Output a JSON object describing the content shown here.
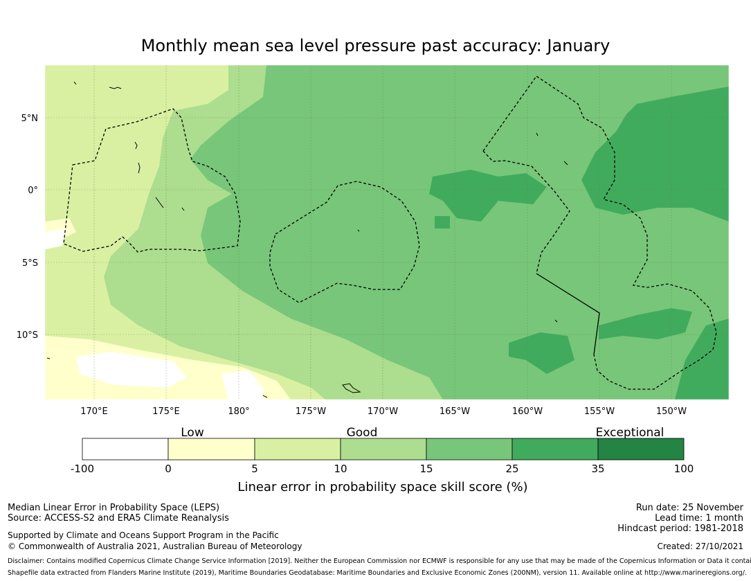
{
  "title": "Monthly mean sea level pressure past accuracy: January",
  "map": {
    "lat_labels": [
      "5°N",
      "0°",
      "5°S",
      "10°S"
    ],
    "lon_labels": [
      "170°E",
      "175°E",
      "180°",
      "175°W",
      "170°W",
      "165°W",
      "160°W",
      "155°W",
      "150°W"
    ],
    "colors": {
      "c_neg": "#ffffff",
      "c_0_5": "#ffffcc",
      "c_5_10": "#d9f0a3",
      "c_10_15": "#addd8e",
      "c_15_25": "#78c679",
      "c_25_35": "#41ab5d",
      "c_35_100": "#238443"
    }
  },
  "colorbar": {
    "categories": [
      "Low",
      "Good",
      "Exceptional"
    ],
    "ticks": [
      "-100",
      "0",
      "5",
      "10",
      "15",
      "25",
      "35",
      "100"
    ],
    "label": "Linear error in probability space skill score (%)"
  },
  "footer": {
    "method": "Median Linear Error in Probability Space (LEPS)",
    "source": "Source: ACCESS-S2 and ERA5 Climate Reanalysis",
    "support": "Supported by Climate and Oceans Support Program in the Pacific",
    "copyright": "© Commonwealth of Australia 2021, Australian Bureau of Meteorology",
    "run_date": "Run date: 25 November",
    "lead_time": "Lead time: 1 month",
    "hindcast": "Hindcast period: 1981-2018",
    "created": "Created: 27/10/2021",
    "disclaimer": "Disclaimer: Contains modified Copernicus Climate Change Service Information [2019]. Neither the European Commission nor ECMWF is responsible for any use that may be made of the Copernicus Information or Data it contains.",
    "shapefile": "Shapefile data extracted from Flanders Marine Institute (2019), Maritime Boundaries Geodatabase: Maritime Boundaries and Exclusive Economic Zones (200NM), version 11. Available online at http://www.marineregions.org/."
  }
}
